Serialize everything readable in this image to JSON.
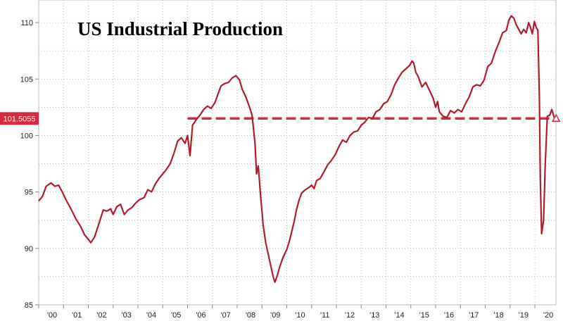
{
  "chart_data": {
    "type": "line",
    "title": "US Industrial Production",
    "xlabel": "",
    "ylabel": "",
    "ylim": [
      85,
      112
    ],
    "xlim": [
      2000.0,
      2020.85
    ],
    "y_ticks": [
      85,
      90,
      95,
      100,
      105,
      110
    ],
    "x_ticks": [
      {
        "label": "'00",
        "year": 2000
      },
      {
        "label": "'01",
        "year": 2001
      },
      {
        "label": "'02",
        "year": 2002
      },
      {
        "label": "'03",
        "year": 2003
      },
      {
        "label": "'04",
        "year": 2004
      },
      {
        "label": "'05",
        "year": 2005
      },
      {
        "label": "'06",
        "year": 2006
      },
      {
        "label": "'07",
        "year": 2007
      },
      {
        "label": "'08",
        "year": 2008
      },
      {
        "label": "'09",
        "year": 2009
      },
      {
        "label": "'10",
        "year": 2010
      },
      {
        "label": "'11",
        "year": 2011
      },
      {
        "label": "'12",
        "year": 2012
      },
      {
        "label": "'13",
        "year": 2013
      },
      {
        "label": "'14",
        "year": 2014
      },
      {
        "label": "'15",
        "year": 2015
      },
      {
        "label": "'16",
        "year": 2016
      },
      {
        "label": "'17",
        "year": 2017
      },
      {
        "label": "'18",
        "year": 2018
      },
      {
        "label": "'19",
        "year": 2019
      },
      {
        "label": "'20",
        "year": 2020
      }
    ],
    "grid": "dotted",
    "series": [
      {
        "color": "#b01c2e",
        "points": [
          [
            2000.0,
            94.2
          ],
          [
            2000.15,
            94.6
          ],
          [
            2000.3,
            95.5
          ],
          [
            2000.5,
            95.8
          ],
          [
            2000.65,
            95.5
          ],
          [
            2000.8,
            95.6
          ],
          [
            2000.95,
            95.0
          ],
          [
            2001.1,
            94.3
          ],
          [
            2001.3,
            93.5
          ],
          [
            2001.5,
            92.6
          ],
          [
            2001.7,
            91.9
          ],
          [
            2001.85,
            91.2
          ],
          [
            2002.0,
            90.8
          ],
          [
            2002.1,
            90.5
          ],
          [
            2002.25,
            91.0
          ],
          [
            2002.4,
            92.0
          ],
          [
            2002.6,
            93.4
          ],
          [
            2002.75,
            93.3
          ],
          [
            2002.9,
            93.5
          ],
          [
            2003.0,
            93.0
          ],
          [
            2003.15,
            93.7
          ],
          [
            2003.3,
            93.9
          ],
          [
            2003.45,
            93.0
          ],
          [
            2003.6,
            93.4
          ],
          [
            2003.75,
            93.6
          ],
          [
            2003.9,
            94.0
          ],
          [
            2004.05,
            94.3
          ],
          [
            2004.25,
            94.5
          ],
          [
            2004.4,
            95.2
          ],
          [
            2004.55,
            95.0
          ],
          [
            2004.7,
            95.7
          ],
          [
            2004.85,
            96.2
          ],
          [
            2005.0,
            96.6
          ],
          [
            2005.15,
            97.0
          ],
          [
            2005.3,
            97.5
          ],
          [
            2005.45,
            98.4
          ],
          [
            2005.6,
            99.5
          ],
          [
            2005.75,
            99.8
          ],
          [
            2005.9,
            99.3
          ],
          [
            2006.0,
            100.0
          ],
          [
            2006.1,
            98.2
          ],
          [
            2006.2,
            100.9
          ],
          [
            2006.35,
            101.4
          ],
          [
            2006.5,
            101.8
          ],
          [
            2006.65,
            102.3
          ],
          [
            2006.8,
            102.6
          ],
          [
            2006.95,
            102.4
          ],
          [
            2007.1,
            102.9
          ],
          [
            2007.2,
            103.5
          ],
          [
            2007.35,
            104.4
          ],
          [
            2007.5,
            104.6
          ],
          [
            2007.65,
            104.7
          ],
          [
            2007.8,
            105.1
          ],
          [
            2007.95,
            105.3
          ],
          [
            2008.1,
            104.9
          ],
          [
            2008.2,
            104.1
          ],
          [
            2008.35,
            103.4
          ],
          [
            2008.5,
            102.5
          ],
          [
            2008.6,
            101.8
          ],
          [
            2008.72,
            99.3
          ],
          [
            2008.78,
            96.6
          ],
          [
            2008.85,
            97.3
          ],
          [
            2008.95,
            94.5
          ],
          [
            2009.05,
            92.0
          ],
          [
            2009.15,
            90.5
          ],
          [
            2009.25,
            89.5
          ],
          [
            2009.35,
            88.5
          ],
          [
            2009.45,
            87.5
          ],
          [
            2009.52,
            87.0
          ],
          [
            2009.62,
            87.6
          ],
          [
            2009.72,
            88.4
          ],
          [
            2009.85,
            89.2
          ],
          [
            2010.0,
            89.9
          ],
          [
            2010.1,
            90.6
          ],
          [
            2010.2,
            91.5
          ],
          [
            2010.3,
            92.4
          ],
          [
            2010.4,
            93.5
          ],
          [
            2010.5,
            94.3
          ],
          [
            2010.6,
            94.9
          ],
          [
            2010.75,
            95.2
          ],
          [
            2010.9,
            95.4
          ],
          [
            2011.0,
            95.6
          ],
          [
            2011.1,
            95.3
          ],
          [
            2011.2,
            96.0
          ],
          [
            2011.35,
            96.2
          ],
          [
            2011.5,
            96.8
          ],
          [
            2011.65,
            97.4
          ],
          [
            2011.8,
            97.8
          ],
          [
            2011.95,
            98.3
          ],
          [
            2012.1,
            99.0
          ],
          [
            2012.25,
            99.6
          ],
          [
            2012.4,
            99.4
          ],
          [
            2012.55,
            100.0
          ],
          [
            2012.7,
            100.3
          ],
          [
            2012.85,
            100.4
          ],
          [
            2013.0,
            100.9
          ],
          [
            2013.15,
            101.2
          ],
          [
            2013.3,
            101.6
          ],
          [
            2013.45,
            101.5
          ],
          [
            2013.6,
            102.1
          ],
          [
            2013.75,
            102.3
          ],
          [
            2013.9,
            102.8
          ],
          [
            2014.05,
            103.0
          ],
          [
            2014.2,
            103.6
          ],
          [
            2014.35,
            104.5
          ],
          [
            2014.5,
            105.1
          ],
          [
            2014.65,
            105.6
          ],
          [
            2014.8,
            105.9
          ],
          [
            2014.95,
            106.2
          ],
          [
            2015.05,
            106.6
          ],
          [
            2015.12,
            106.4
          ],
          [
            2015.2,
            105.6
          ],
          [
            2015.3,
            105.2
          ],
          [
            2015.45,
            104.3
          ],
          [
            2015.6,
            104.7
          ],
          [
            2015.75,
            104.0
          ],
          [
            2015.9,
            103.3
          ],
          [
            2016.0,
            102.5
          ],
          [
            2016.08,
            103.0
          ],
          [
            2016.15,
            102.1
          ],
          [
            2016.3,
            101.7
          ],
          [
            2016.45,
            101.6
          ],
          [
            2016.6,
            102.2
          ],
          [
            2016.75,
            102.0
          ],
          [
            2016.9,
            102.3
          ],
          [
            2017.05,
            102.1
          ],
          [
            2017.2,
            102.8
          ],
          [
            2017.35,
            103.4
          ],
          [
            2017.5,
            104.3
          ],
          [
            2017.65,
            104.5
          ],
          [
            2017.8,
            104.4
          ],
          [
            2017.95,
            104.9
          ],
          [
            2018.1,
            106.1
          ],
          [
            2018.25,
            106.4
          ],
          [
            2018.4,
            107.4
          ],
          [
            2018.55,
            108.2
          ],
          [
            2018.7,
            109.1
          ],
          [
            2018.85,
            109.3
          ],
          [
            2018.95,
            110.2
          ],
          [
            2019.05,
            110.6
          ],
          [
            2019.15,
            110.4
          ],
          [
            2019.25,
            109.8
          ],
          [
            2019.35,
            109.4
          ],
          [
            2019.45,
            109.0
          ],
          [
            2019.55,
            109.4
          ],
          [
            2019.65,
            109.1
          ],
          [
            2019.75,
            110.0
          ],
          [
            2019.82,
            109.6
          ],
          [
            2019.9,
            109.0
          ],
          [
            2019.98,
            110.1
          ],
          [
            2020.05,
            109.6
          ],
          [
            2020.12,
            109.3
          ],
          [
            2020.18,
            103.5
          ],
          [
            2020.22,
            96.0
          ],
          [
            2020.27,
            91.3
          ],
          [
            2020.35,
            92.5
          ],
          [
            2020.42,
            97.5
          ],
          [
            2020.5,
            101.7
          ],
          [
            2020.6,
            101.8
          ],
          [
            2020.68,
            102.3
          ],
          [
            2020.75,
            101.8
          ],
          [
            2020.8,
            101.5
          ]
        ]
      }
    ],
    "reference_line": {
      "value": 101.5055,
      "label": "101.5055",
      "style": "dashed",
      "color": "#d62a3e"
    }
  }
}
